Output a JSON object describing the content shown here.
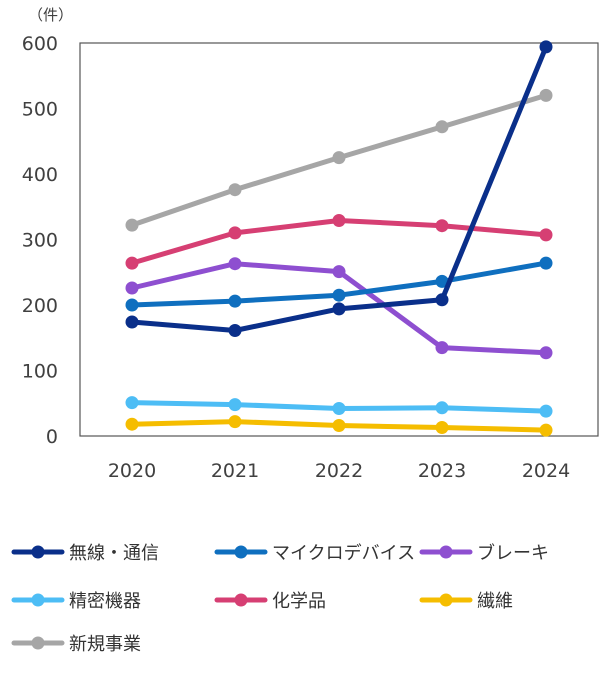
{
  "chart_data": {
    "type": "line",
    "unit_label": "（件）",
    "categories": [
      "2020",
      "2021",
      "2022",
      "2023",
      "2024"
    ],
    "ylim": [
      0,
      600
    ],
    "yticks": [
      0,
      100,
      200,
      300,
      400,
      500,
      600
    ],
    "grid": false,
    "legend_position": "bottom",
    "series": [
      {
        "name": "無線・通信",
        "color": "#0a2f8a",
        "values": [
          174,
          161,
          194,
          208,
          594
        ]
      },
      {
        "name": "マイクロデバイス",
        "color": "#0f6fbf",
        "values": [
          200,
          206,
          215,
          236,
          264
        ]
      },
      {
        "name": "ブレーキ",
        "color": "#8e4fd0",
        "values": [
          226,
          263,
          251,
          135,
          127
        ]
      },
      {
        "name": "精密機器",
        "color": "#4dbdf5",
        "values": [
          51,
          48,
          42,
          43,
          38
        ]
      },
      {
        "name": "化学品",
        "color": "#d63f73",
        "values": [
          264,
          310,
          329,
          321,
          307
        ]
      },
      {
        "name": "繊維",
        "color": "#f5bd00",
        "values": [
          18,
          22,
          16,
          13,
          9
        ]
      },
      {
        "name": "新規事業",
        "color": "#a6a6a6",
        "values": [
          322,
          376,
          425,
          472,
          520
        ]
      }
    ]
  }
}
